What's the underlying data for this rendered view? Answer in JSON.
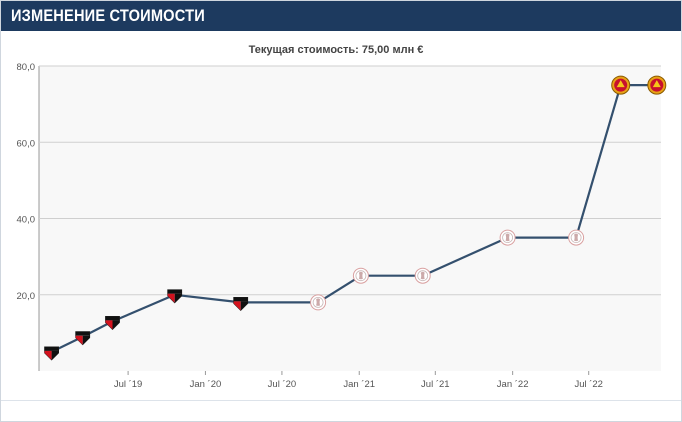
{
  "header": {
    "title": "ИЗМЕНЕНИЕ СТОИМОСТИ"
  },
  "colors": {
    "header_bg": "#1d3a5f",
    "line": "#34506e",
    "plot_bg": "#f8f8f8",
    "grid": "#cfcfcf"
  },
  "chart_data": {
    "type": "line",
    "title": "Текущая стоимость: 75,00 млн €",
    "xlabel": "",
    "ylabel": "",
    "ylim": [
      0,
      80
    ],
    "yticks": [
      20,
      40,
      60,
      80
    ],
    "ytick_labels": [
      "20,0",
      "40,0",
      "60,0",
      "80,0"
    ],
    "xlim": [
      "2018-12-01",
      "2022-12-20"
    ],
    "xticks": [
      "2019-07-01",
      "2020-01-01",
      "2020-07-01",
      "2021-01-01",
      "2021-07-01",
      "2022-01-01",
      "2022-07-01"
    ],
    "xtick_labels": [
      "Jul ´19",
      "Jan ´20",
      "Jul ´20",
      "Jan ´21",
      "Jul ´21",
      "Jan ´22",
      "Jul ´22"
    ],
    "grid": true,
    "series": [
      {
        "points": [
          {
            "x": "2018-12-31",
            "y": 5,
            "club_icon": "sao-paulo-crest"
          },
          {
            "x": "2019-03-15",
            "y": 9,
            "club_icon": "sao-paulo-crest"
          },
          {
            "x": "2019-05-25",
            "y": 13,
            "club_icon": "sao-paulo-crest"
          },
          {
            "x": "2019-10-20",
            "y": 20,
            "club_icon": "sao-paulo-crest"
          },
          {
            "x": "2020-03-25",
            "y": 18,
            "club_icon": "sao-paulo-crest"
          },
          {
            "x": "2020-09-25",
            "y": 18,
            "club_icon": "ajax-crest"
          },
          {
            "x": "2021-01-05",
            "y": 25,
            "club_icon": "ajax-crest"
          },
          {
            "x": "2021-06-01",
            "y": 25,
            "club_icon": "ajax-crest"
          },
          {
            "x": "2021-12-20",
            "y": 35,
            "club_icon": "ajax-crest"
          },
          {
            "x": "2022-06-01",
            "y": 35,
            "club_icon": "ajax-crest"
          },
          {
            "x": "2022-09-15",
            "y": 75,
            "club_icon": "manchester-united-crest"
          },
          {
            "x": "2022-12-10",
            "y": 75,
            "club_icon": "manchester-united-crest"
          }
        ]
      }
    ]
  }
}
